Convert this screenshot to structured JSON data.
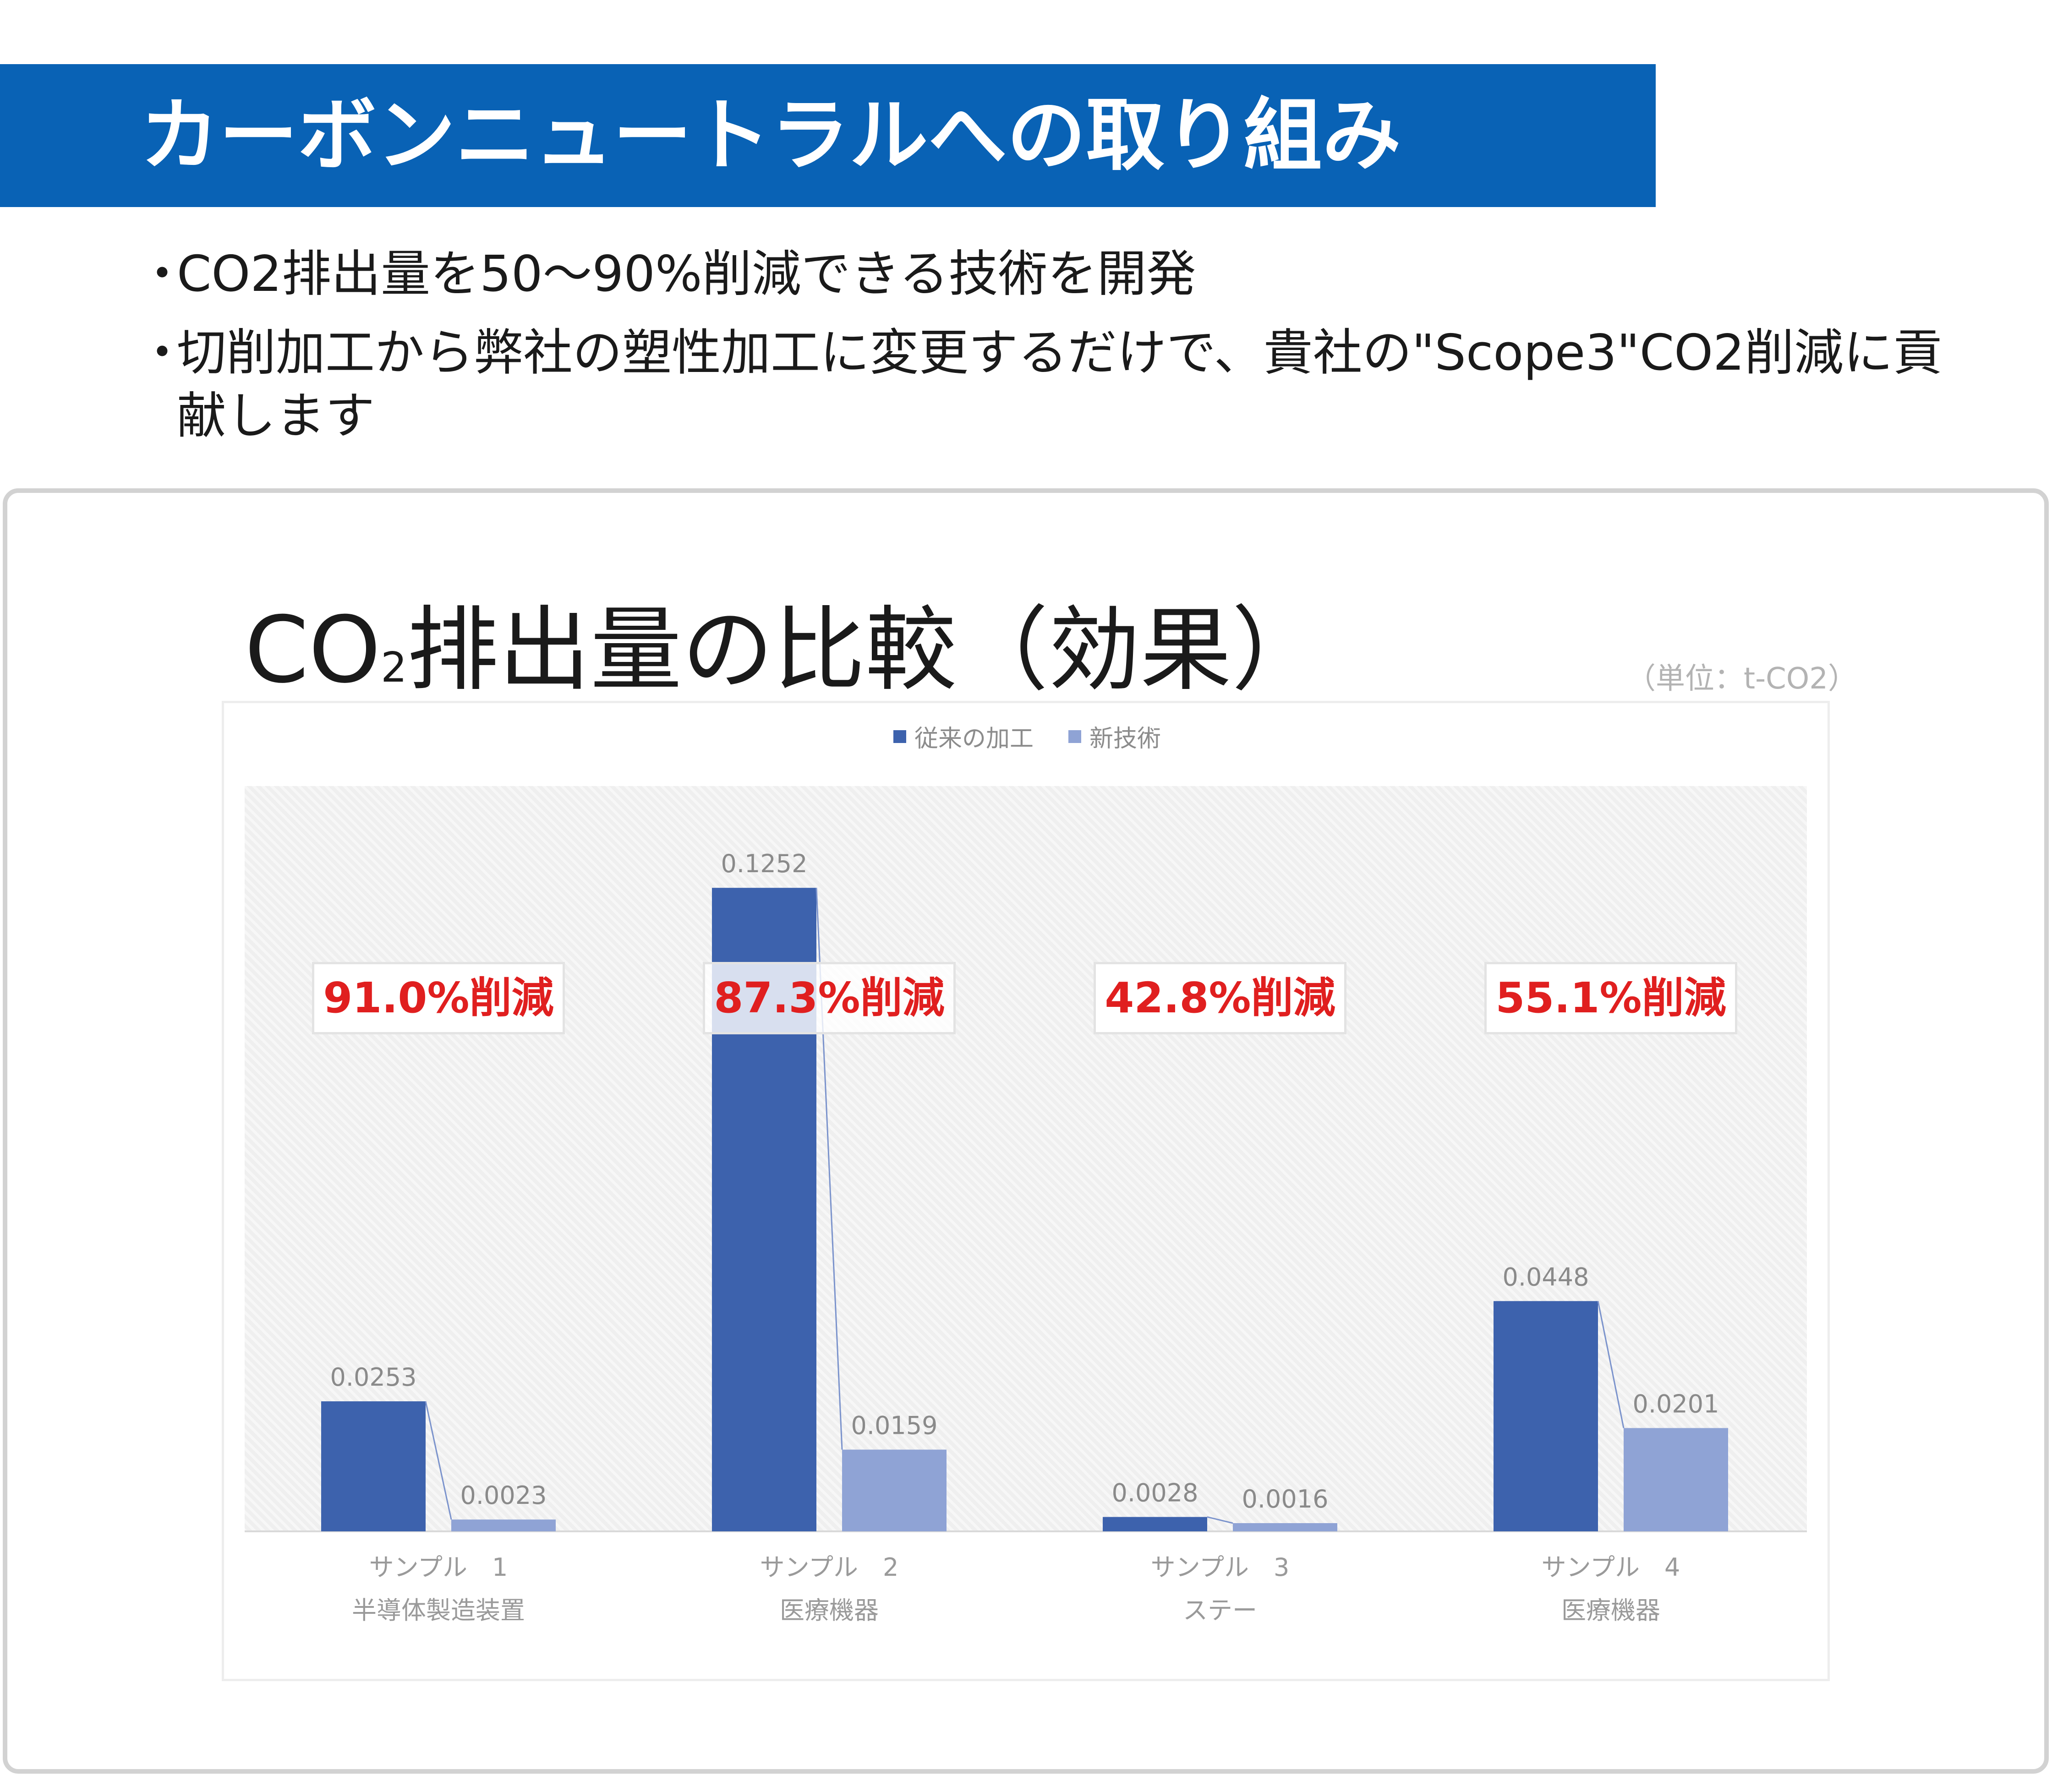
{
  "header": {
    "title": "カーボンニュートラルへの取り組み"
  },
  "bullets": [
    {
      "marker": "・",
      "text": "CO2排出量を50～90%削減できる技術を開発"
    },
    {
      "marker": "・",
      "text": "切削加工から弊社の塑性加工に変更するだけで、貴社の\"Scope3\"CO2削減に貢献します"
    }
  ],
  "chart_data": {
    "type": "bar",
    "title_main": "CO",
    "title_sub": "2",
    "title_rest": "排出量の比較（効果）",
    "unit": "（単位：t-CO2）",
    "categories": [
      {
        "line1": "サンプル　1",
        "line2": "半導体製造装置"
      },
      {
        "line1": "サンプル　2",
        "line2": "医療機器"
      },
      {
        "line1": "サンプル　3",
        "line2": "ステー"
      },
      {
        "line1": "サンプル　4",
        "line2": "医療機器"
      }
    ],
    "series": [
      {
        "name": "従来の加工",
        "color": "#3d62ad",
        "values": [
          0.0253,
          0.1252,
          0.0028,
          0.0448
        ],
        "labels": [
          "0.0253",
          "0.1252",
          "0.0028",
          "0.0448"
        ]
      },
      {
        "name": "新技術",
        "color": "#8fa3d5",
        "values": [
          0.0023,
          0.0159,
          0.0016,
          0.0201
        ],
        "labels": [
          "0.0023",
          "0.0159",
          "0.0016",
          "0.0201"
        ]
      }
    ],
    "reductions": [
      "91.0%削減",
      "87.3%削減",
      "42.8%削減",
      "55.1%削減"
    ],
    "ylim": [
      0,
      0.145
    ],
    "legend_position": "top-center",
    "grid": false
  }
}
